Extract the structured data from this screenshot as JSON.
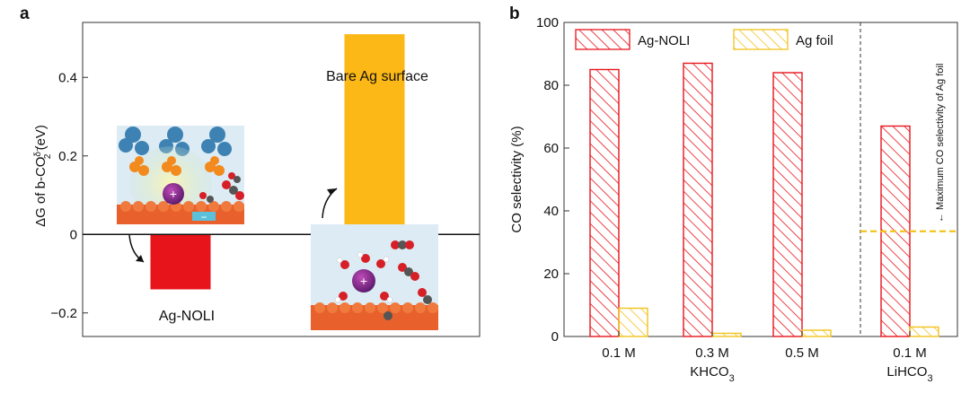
{
  "panels": {
    "a": {
      "letter": "a",
      "ylabel_main": "ΔG of b-CO",
      "ylabel_sub": "2",
      "ylabel_sup": "δ−",
      "ylabel_unit": " (eV)",
      "inset_labels": {
        "cation": "+",
        "anion": "−"
      }
    },
    "b": {
      "letter": "b",
      "ylabel": "CO selectivity (%)",
      "group_names": [
        "KHCO3",
        "LiHCO3"
      ],
      "annotation": "← Maximum CO selectivity of Ag foil"
    }
  },
  "chart_data": [
    {
      "type": "bar",
      "panel": "a",
      "categories": [
        "Ag-NOLI",
        "Bare Ag surface"
      ],
      "values": [
        -0.14,
        0.51
      ],
      "colors": [
        "#e8141c",
        "#fbb816"
      ],
      "ylim": [
        -0.26,
        0.54
      ],
      "yticks": [
        -0.2,
        0,
        0.2,
        0.4
      ],
      "ytick_labels": [
        "−0.2",
        "0",
        "0.2",
        "0.4"
      ],
      "xlabel": "",
      "zero_line": true
    },
    {
      "type": "bar",
      "panel": "b",
      "categories": [
        "0.1 M",
        "0.3 M",
        "0.5 M",
        "0.1 M"
      ],
      "groups": [
        "KHCO3",
        "KHCO3",
        "KHCO3",
        "LiHCO3"
      ],
      "series": [
        {
          "name": "Ag-NOLI",
          "values": [
            85,
            87,
            84,
            67
          ],
          "color": "#e8141c"
        },
        {
          "name": "Ag foil",
          "values": [
            9,
            1,
            2,
            3
          ],
          "color": "#f2c31b"
        }
      ],
      "ylim": [
        0,
        100
      ],
      "yticks": [
        0,
        20,
        40,
        60,
        80,
        100
      ],
      "reference_line": {
        "value": 33.5,
        "color": "#f2c31b"
      },
      "legend": "top",
      "hatch": true
    }
  ]
}
